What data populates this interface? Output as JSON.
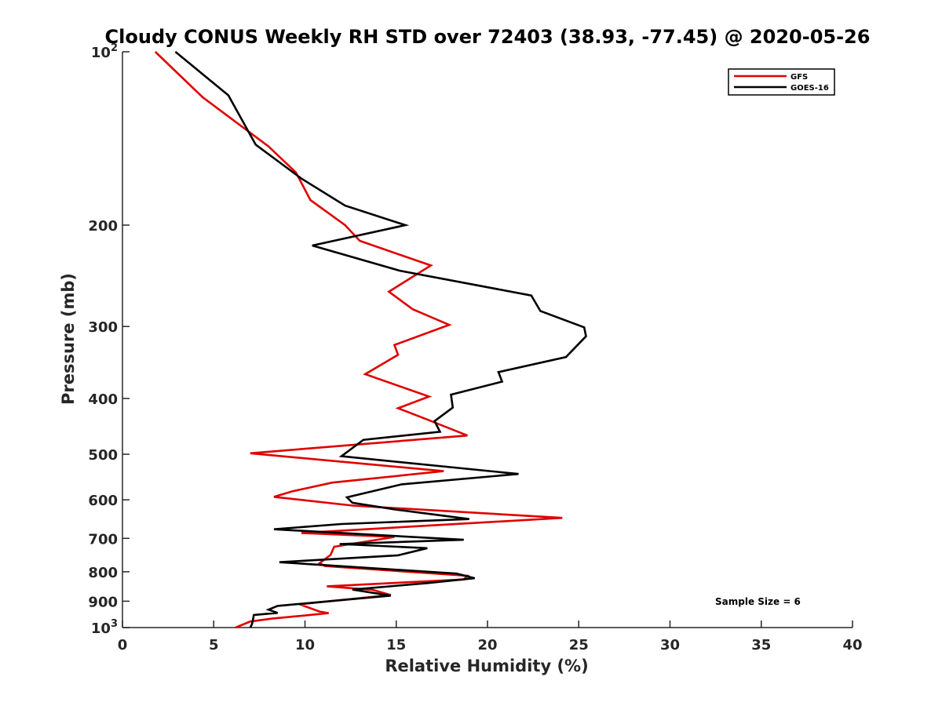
{
  "chart_data": {
    "type": "line",
    "title": "Cloudy CONUS Weekly RH STD over 72403 (38.93, -77.45) @ 2020-05-26",
    "xlabel": "Relative Humidity (%)",
    "ylabel": "Pressure (mb)",
    "xlim": [
      0,
      40
    ],
    "ylim": [
      100,
      1000
    ],
    "y_scale": "log",
    "y_reversed": true,
    "x_ticks": [
      0,
      5,
      10,
      15,
      20,
      25,
      30,
      35,
      40
    ],
    "x_tick_labels": [
      "0",
      "5",
      "10",
      "15",
      "20",
      "25",
      "30",
      "35",
      "40"
    ],
    "y_ticks": [
      100,
      200,
      300,
      400,
      500,
      600,
      700,
      800,
      900,
      1000
    ],
    "y_tick_labels": [
      {
        "base": "10",
        "exp": "2"
      },
      {
        "base": "200",
        "exp": ""
      },
      {
        "base": "300",
        "exp": ""
      },
      {
        "base": "400",
        "exp": ""
      },
      {
        "base": "500",
        "exp": ""
      },
      {
        "base": "600",
        "exp": ""
      },
      {
        "base": "700",
        "exp": ""
      },
      {
        "base": "800",
        "exp": ""
      },
      {
        "base": "900",
        "exp": ""
      },
      {
        "base": "10",
        "exp": "3"
      }
    ],
    "grid": false,
    "legend_position": "top-right",
    "annotation": "Sample Size = 6",
    "series": [
      {
        "name": "GFS",
        "color": "#e00000",
        "points": [
          [
            1.8,
            100
          ],
          [
            4.4,
            120
          ],
          [
            8.0,
            146
          ],
          [
            9.5,
            162
          ],
          [
            10.3,
            181
          ],
          [
            12.2,
            200
          ],
          [
            13.0,
            213
          ],
          [
            16.9,
            235
          ],
          [
            14.6,
            261
          ],
          [
            15.9,
            280
          ],
          [
            17.9,
            298
          ],
          [
            14.9,
            323
          ],
          [
            15.1,
            336
          ],
          [
            13.3,
            363
          ],
          [
            16.8,
            397
          ],
          [
            15.1,
            416
          ],
          [
            16.6,
            434
          ],
          [
            18.9,
            464
          ],
          [
            7.0,
            498
          ],
          [
            17.6,
            535
          ],
          [
            11.5,
            560
          ],
          [
            9.3,
            580
          ],
          [
            8.3,
            593
          ],
          [
            12.6,
            614
          ],
          [
            24.1,
            645
          ],
          [
            9.8,
            685
          ],
          [
            14.9,
            696
          ],
          [
            11.6,
            724
          ],
          [
            11.4,
            748
          ],
          [
            10.8,
            773
          ],
          [
            11.1,
            782
          ],
          [
            18.9,
            813
          ],
          [
            18.7,
            825
          ],
          [
            11.2,
            848
          ],
          [
            13.7,
            860
          ],
          [
            14.7,
            878
          ],
          [
            9.7,
            911
          ],
          [
            10.8,
            938
          ],
          [
            11.3,
            944
          ],
          [
            8.2,
            965
          ],
          [
            7.0,
            976
          ],
          [
            6.2,
            1000
          ]
        ]
      },
      {
        "name": "GOES-16",
        "color": "#000000",
        "points": [
          [
            2.9,
            100
          ],
          [
            5.8,
            119
          ],
          [
            7.3,
            145
          ],
          [
            9.8,
            166
          ],
          [
            12.2,
            185
          ],
          [
            15.5,
            200
          ],
          [
            10.4,
            217
          ],
          [
            15.2,
            240
          ],
          [
            22.4,
            265
          ],
          [
            22.9,
            282
          ],
          [
            25.3,
            301
          ],
          [
            25.4,
            312
          ],
          [
            24.3,
            339
          ],
          [
            20.6,
            360
          ],
          [
            20.8,
            374
          ],
          [
            18.0,
            394
          ],
          [
            18.1,
            415
          ],
          [
            17.1,
            438
          ],
          [
            17.4,
            457
          ],
          [
            13.2,
            472
          ],
          [
            12.0,
            504
          ],
          [
            21.7,
            541
          ],
          [
            15.3,
            564
          ],
          [
            12.3,
            594
          ],
          [
            12.6,
            607
          ],
          [
            15.0,
            624
          ],
          [
            19.0,
            648
          ],
          [
            12.0,
            661
          ],
          [
            8.3,
            675
          ],
          [
            18.7,
            704
          ],
          [
            11.9,
            716
          ],
          [
            16.7,
            728
          ],
          [
            15.1,
            749
          ],
          [
            8.6,
            770
          ],
          [
            18.3,
            806
          ],
          [
            19.3,
            821
          ],
          [
            16.7,
            837
          ],
          [
            12.6,
            859
          ],
          [
            14.7,
            880
          ],
          [
            8.5,
            917
          ],
          [
            8.0,
            931
          ],
          [
            8.5,
            943
          ],
          [
            7.2,
            951
          ],
          [
            7.1,
            986
          ],
          [
            7.0,
            1000
          ]
        ]
      }
    ]
  }
}
